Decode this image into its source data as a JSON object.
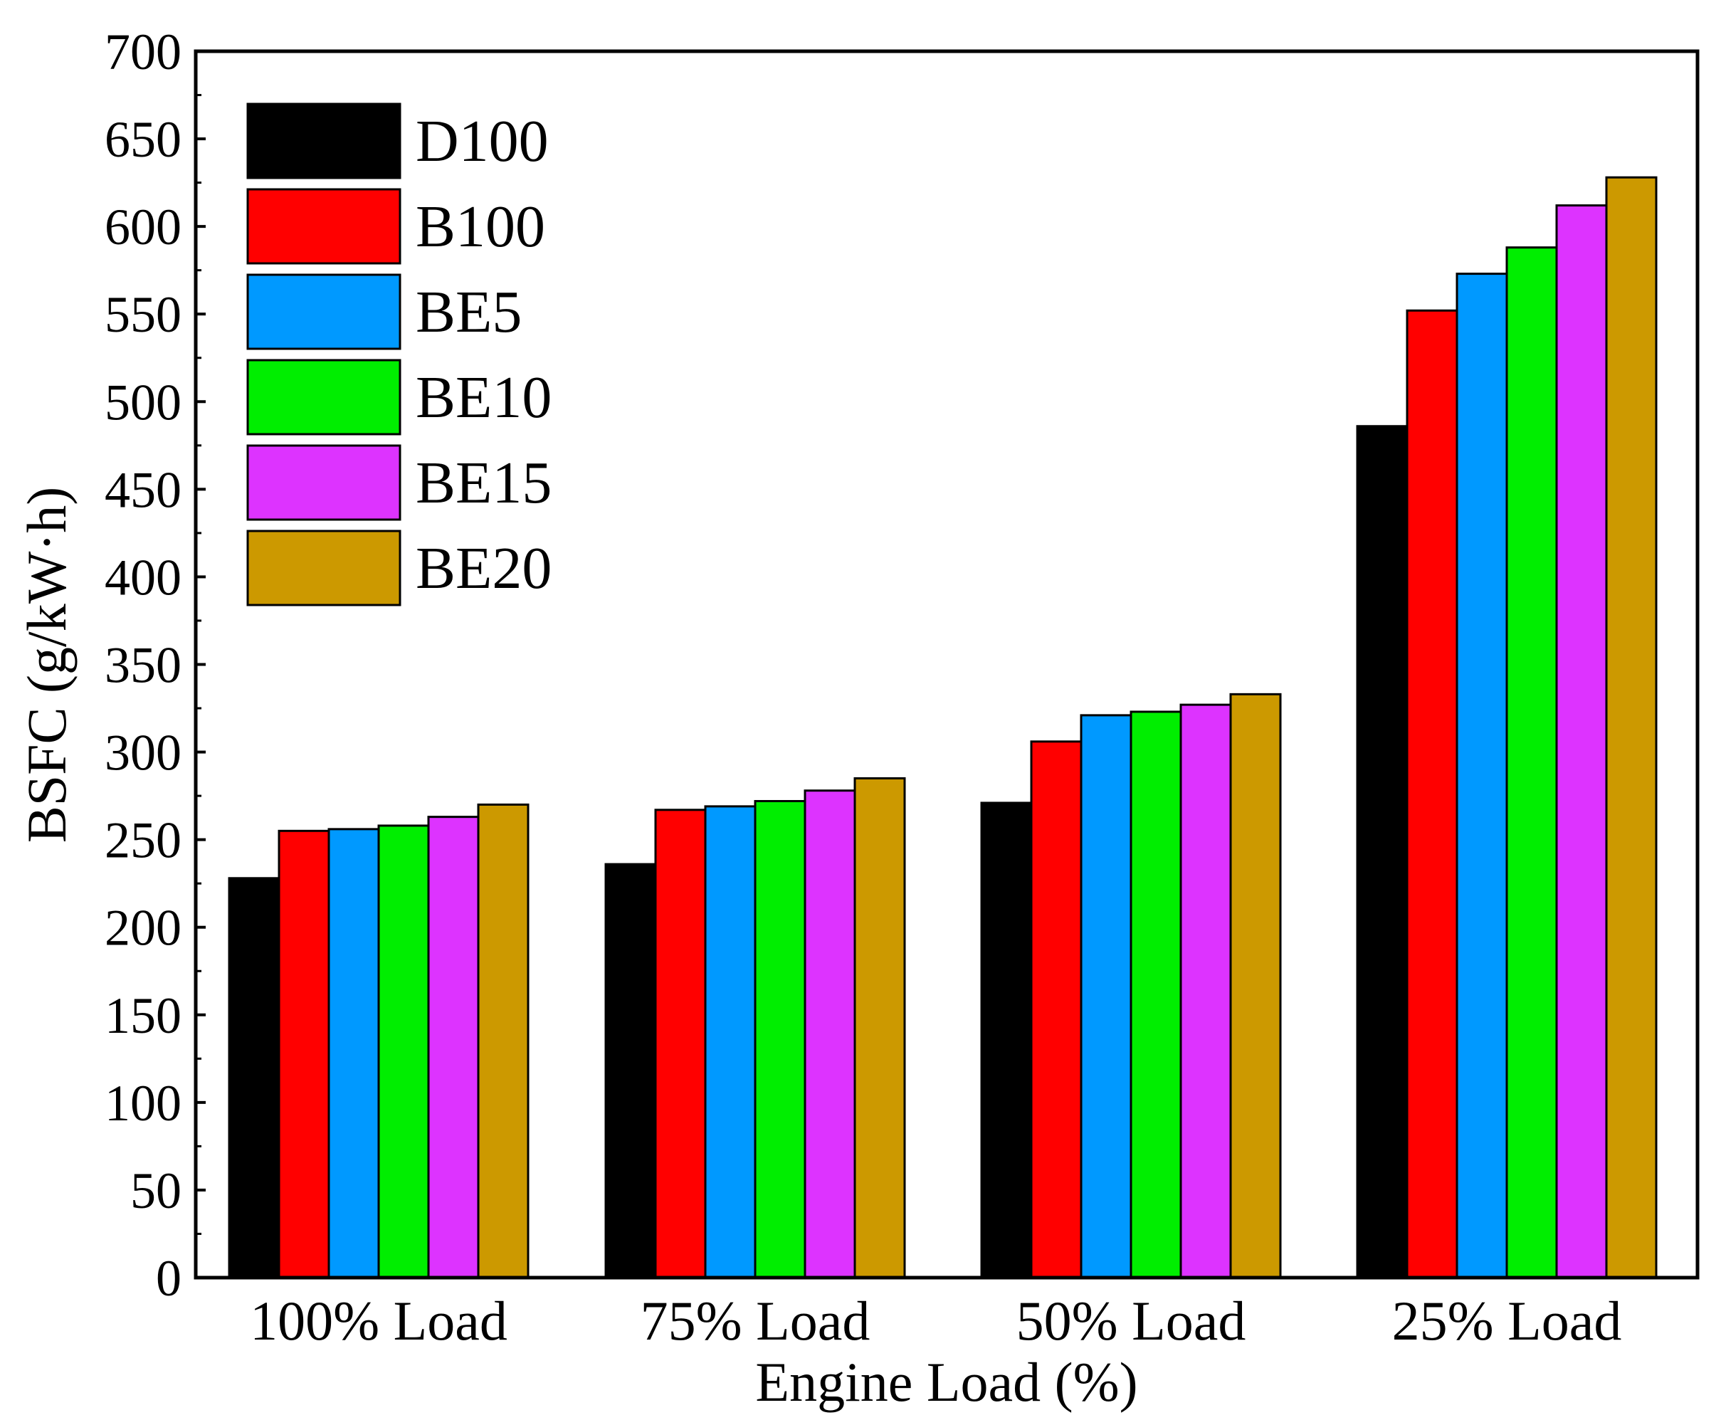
{
  "chart_data": {
    "type": "bar",
    "title": "",
    "xlabel": "Engine Load (%)",
    "ylabel": "BSFC (g/kW·h)",
    "ylim": [
      0,
      700
    ],
    "yticks": [
      "0",
      "50",
      "100",
      "150",
      "200",
      "250",
      "300",
      "350",
      "400",
      "450",
      "500",
      "550",
      "600",
      "650",
      "700"
    ],
    "categories": [
      "100% Load",
      "75% Load",
      "50% Load",
      "25% Load"
    ],
    "legend_position": "top-left",
    "series": [
      {
        "name": "D100",
        "color": "#000000",
        "values": [
          228,
          236,
          271,
          486
        ]
      },
      {
        "name": "B100",
        "color": "#ff0000",
        "values": [
          255,
          267,
          306,
          552
        ]
      },
      {
        "name": "BE5",
        "color": "#0099ff",
        "values": [
          256,
          269,
          321,
          573
        ]
      },
      {
        "name": "BE10",
        "color": "#00ee00",
        "values": [
          258,
          272,
          323,
          588
        ]
      },
      {
        "name": "BE15",
        "color": "#dd33ff",
        "values": [
          263,
          278,
          327,
          612
        ]
      },
      {
        "name": "BE20",
        "color": "#cc9900",
        "values": [
          270,
          285,
          333,
          628
        ]
      }
    ]
  }
}
